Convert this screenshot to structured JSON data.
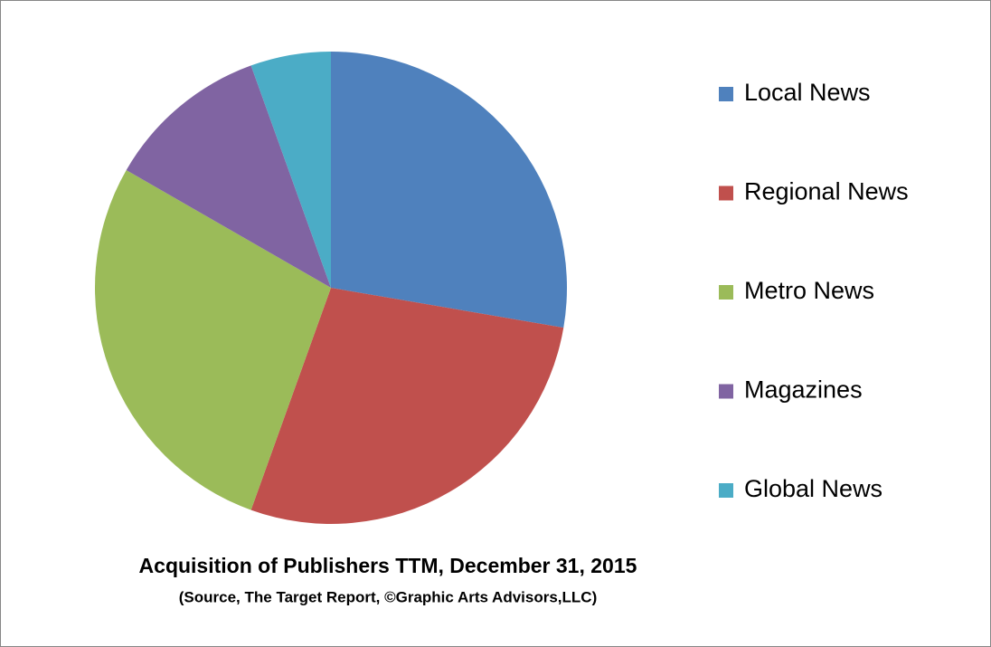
{
  "chart_data": {
    "type": "pie",
    "title": "Acquisition of Publishers TTM, December 31, 2015",
    "subtitle": "(Source, The Target Report, ©Graphic Arts Advisors,LLC)",
    "categories": [
      "Local News",
      "Regional News",
      "Metro News",
      "Magazines",
      "Global News"
    ],
    "values": [
      27.7,
      27.8,
      27.8,
      11.2,
      5.5
    ],
    "colors": [
      "#4f81bd",
      "#c0504d",
      "#9bbb59",
      "#8064a2",
      "#4bacc6"
    ],
    "legend": "right"
  }
}
